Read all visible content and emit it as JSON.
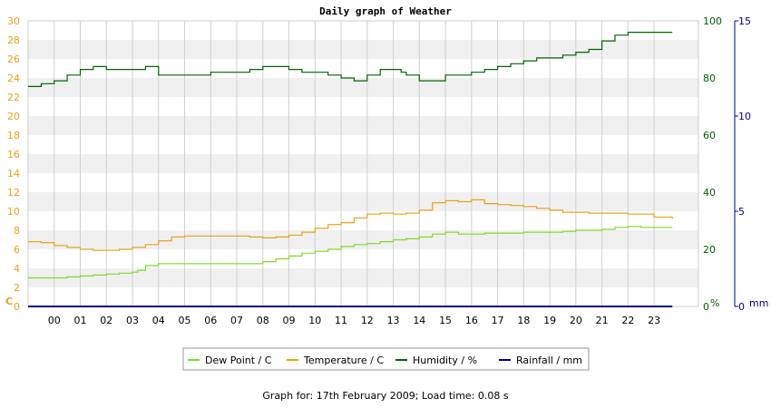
{
  "chart_data": {
    "type": "line",
    "title": "Daily graph of Weather",
    "xlabel": "",
    "x_ticks": [
      "00",
      "01",
      "02",
      "03",
      "04",
      "05",
      "06",
      "07",
      "08",
      "09",
      "10",
      "11",
      "12",
      "13",
      "14",
      "15",
      "16",
      "17",
      "18",
      "19",
      "20",
      "21",
      "22",
      "23"
    ],
    "x_range": [
      -1,
      24.7
    ],
    "left_axis": {
      "unit": "C",
      "ylim": [
        0,
        30
      ],
      "ticks": [
        0,
        2,
        4,
        6,
        8,
        10,
        12,
        14,
        16,
        18,
        20,
        22,
        24,
        26,
        28,
        30
      ],
      "color": "#e8a317"
    },
    "right_axis_humidity": {
      "unit": "%",
      "ylim": [
        0,
        100
      ],
      "ticks": [
        0,
        20,
        40,
        60,
        80,
        100
      ],
      "color": "#006400"
    },
    "right_axis_rainfall": {
      "unit": "mm",
      "ylim": [
        0,
        15
      ],
      "ticks": [
        0,
        5,
        10,
        15
      ],
      "color": "#00008b"
    },
    "grid": true,
    "legend_position": "bottom",
    "series": [
      {
        "name": "Dew Point / C",
        "axis": "left",
        "color": "#7cdc2a",
        "x": [
          -1,
          -0.5,
          0,
          0.5,
          1,
          1.5,
          2,
          2.5,
          3,
          3.2,
          3.5,
          4,
          4.5,
          5,
          5.5,
          6,
          6.5,
          7,
          7.5,
          8,
          8.5,
          9,
          9.5,
          10,
          10.5,
          11,
          11.5,
          12,
          12.5,
          13,
          13.5,
          14,
          14.5,
          15,
          15.5,
          16,
          16.5,
          17,
          17.5,
          18,
          18.5,
          19,
          19.5,
          20,
          20.5,
          21,
          21.5,
          22,
          22.5,
          23,
          23.7
        ],
        "y": [
          3.0,
          3.0,
          3.0,
          3.1,
          3.2,
          3.3,
          3.4,
          3.5,
          3.6,
          3.8,
          4.3,
          4.5,
          4.5,
          4.5,
          4.5,
          4.5,
          4.5,
          4.5,
          4.5,
          4.7,
          5.0,
          5.3,
          5.6,
          5.8,
          6.0,
          6.3,
          6.5,
          6.6,
          6.8,
          7.0,
          7.1,
          7.3,
          7.6,
          7.8,
          7.6,
          7.6,
          7.7,
          7.7,
          7.7,
          7.8,
          7.8,
          7.8,
          7.9,
          8.0,
          8.0,
          8.1,
          8.3,
          8.4,
          8.3,
          8.3,
          8.3
        ]
      },
      {
        "name": "Temperature / C",
        "axis": "left",
        "color": "#e8a317",
        "x": [
          -1,
          -0.5,
          0,
          0.5,
          1,
          1.5,
          2,
          2.5,
          3,
          3.5,
          4,
          4.5,
          5,
          5.5,
          6,
          6.5,
          7,
          7.5,
          8,
          8.5,
          9,
          9.5,
          10,
          10.5,
          11,
          11.5,
          12,
          12.5,
          13,
          13.2,
          13.5,
          14,
          14.5,
          15,
          15.5,
          16,
          16.5,
          17,
          17.5,
          18,
          18.5,
          19,
          19.5,
          20,
          20.5,
          21,
          21.5,
          22,
          22.5,
          23,
          23.7
        ],
        "y": [
          6.8,
          6.7,
          6.4,
          6.2,
          6.0,
          5.9,
          5.9,
          6.0,
          6.2,
          6.5,
          6.9,
          7.3,
          7.4,
          7.4,
          7.4,
          7.4,
          7.4,
          7.3,
          7.2,
          7.3,
          7.5,
          7.8,
          8.2,
          8.6,
          8.8,
          9.3,
          9.7,
          9.8,
          9.7,
          9.7,
          9.8,
          10.1,
          10.9,
          11.1,
          11.0,
          11.2,
          10.8,
          10.7,
          10.6,
          10.5,
          10.3,
          10.1,
          9.9,
          9.9,
          9.8,
          9.8,
          9.8,
          9.7,
          9.7,
          9.4,
          9.2
        ]
      },
      {
        "name": "Humidity / %",
        "axis": "right_humidity",
        "color": "#006400",
        "x": [
          -1,
          -0.5,
          0,
          0.5,
          1,
          1.5,
          2,
          2.5,
          3,
          3.5,
          4,
          4.5,
          5,
          5.5,
          6,
          6.5,
          7,
          7.5,
          8,
          8.5,
          9,
          9.5,
          10,
          10.5,
          11,
          11.5,
          12,
          12.5,
          13,
          13.3,
          13.5,
          14,
          14.5,
          15,
          15.5,
          16,
          16.5,
          17,
          17.5,
          18,
          18.5,
          19,
          19.5,
          20,
          20.5,
          21,
          21.5,
          22,
          22.5,
          23,
          23.7
        ],
        "y": [
          77,
          78,
          79,
          81,
          83,
          84,
          83,
          83,
          83,
          84,
          81,
          81,
          81,
          81,
          82,
          82,
          82,
          83,
          84,
          84,
          83,
          82,
          82,
          81,
          80,
          79,
          81,
          83,
          83,
          82,
          81,
          79,
          79,
          81,
          81,
          82,
          83,
          84,
          85,
          86,
          87,
          87,
          88,
          89,
          90,
          93,
          95,
          96,
          96,
          96,
          96
        ]
      },
      {
        "name": "Rainfall / mm",
        "axis": "right_rainfall",
        "color": "#00008b",
        "x": [
          -1,
          23.7
        ],
        "y": [
          0,
          0
        ]
      }
    ]
  },
  "footer": "Graph for: 17th February 2009; Load time: 0.08 s"
}
